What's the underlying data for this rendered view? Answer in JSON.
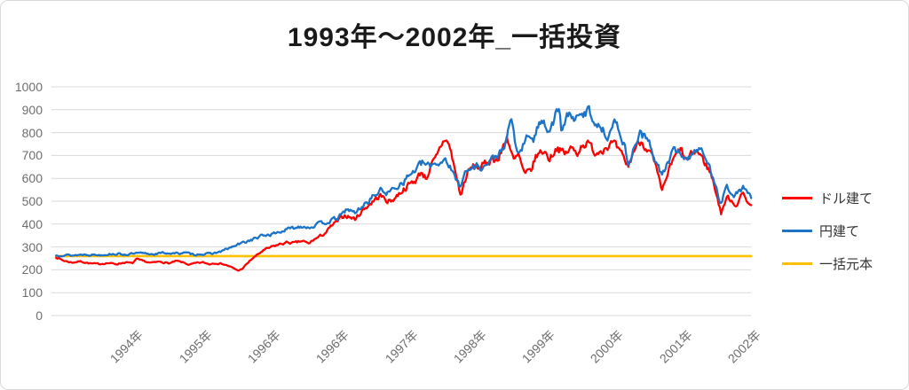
{
  "chart_data": {
    "type": "line",
    "title": "1993年～2002年_一括投資",
    "ylim": [
      0,
      1000
    ],
    "y_ticks": [
      0,
      100,
      200,
      300,
      400,
      500,
      600,
      700,
      800,
      900,
      1000
    ],
    "x_tick_labels": [
      "1994年",
      "1995年",
      "1996年",
      "1996年",
      "1997年",
      "1998年",
      "1999年",
      "2000年",
      "2001年",
      "2002年"
    ],
    "grid": "on",
    "legend_position": "right",
    "principal_value": 260,
    "colors": {
      "dollar_series": "#FF0000",
      "yen_series": "#1C74C8",
      "principal_series": "#FFC000",
      "grid": "#D9D9D9",
      "axis_label": "#6E6E6E",
      "title": "#1A1A1A",
      "legend_text": "#333333",
      "border": "#D9D9D9"
    },
    "series": [
      {
        "name": "ドル建て",
        "color": "#FF0000",
        "seed": 7,
        "anchors": [
          [
            0,
            256
          ],
          [
            0.1,
            241
          ],
          [
            0.23,
            232
          ],
          [
            0.36,
            237
          ],
          [
            0.49,
            228
          ],
          [
            0.62,
            225
          ],
          [
            0.75,
            230
          ],
          [
            0.88,
            225
          ],
          [
            1.01,
            233
          ],
          [
            1.11,
            228
          ],
          [
            1.17,
            246
          ],
          [
            1.26,
            238
          ],
          [
            1.39,
            230
          ],
          [
            1.52,
            236
          ],
          [
            1.65,
            228
          ],
          [
            1.75,
            238
          ],
          [
            1.85,
            232
          ],
          [
            1.94,
            222
          ],
          [
            2.04,
            229
          ],
          [
            2.14,
            232
          ],
          [
            2.23,
            225
          ],
          [
            2.32,
            230
          ],
          [
            2.43,
            226
          ],
          [
            2.53,
            215
          ],
          [
            2.59,
            205
          ],
          [
            2.66,
            196
          ],
          [
            2.72,
            207
          ],
          [
            2.77,
            222
          ],
          [
            2.85,
            247
          ],
          [
            2.92,
            262
          ],
          [
            3.01,
            283
          ],
          [
            3.14,
            299
          ],
          [
            3.2,
            306
          ],
          [
            3.3,
            315
          ],
          [
            3.39,
            320
          ],
          [
            3.48,
            316
          ],
          [
            3.59,
            326
          ],
          [
            3.68,
            313
          ],
          [
            3.75,
            331
          ],
          [
            3.85,
            346
          ],
          [
            3.94,
            366
          ],
          [
            4.03,
            396
          ],
          [
            4.1,
            410
          ],
          [
            4.21,
            440
          ],
          [
            4.3,
            428
          ],
          [
            4.36,
            422
          ],
          [
            4.45,
            455
          ],
          [
            4.53,
            478
          ],
          [
            4.62,
            500
          ],
          [
            4.72,
            525
          ],
          [
            4.81,
            505
          ],
          [
            4.88,
            500
          ],
          [
            4.97,
            525
          ],
          [
            5.07,
            555
          ],
          [
            5.16,
            575
          ],
          [
            5.24,
            592
          ],
          [
            5.33,
            630
          ],
          [
            5.39,
            600
          ],
          [
            5.47,
            655
          ],
          [
            5.55,
            690
          ],
          [
            5.61,
            742
          ],
          [
            5.68,
            779
          ],
          [
            5.75,
            722
          ],
          [
            5.82,
            625
          ],
          [
            5.9,
            520
          ],
          [
            5.95,
            585
          ],
          [
            6.01,
            630
          ],
          [
            6.1,
            655
          ],
          [
            6.19,
            645
          ],
          [
            6.27,
            666
          ],
          [
            6.36,
            692
          ],
          [
            6.45,
            680
          ],
          [
            6.57,
            788
          ],
          [
            6.67,
            672
          ],
          [
            6.74,
            700
          ],
          [
            6.83,
            610
          ],
          [
            6.92,
            635
          ],
          [
            7.0,
            700
          ],
          [
            7.11,
            722
          ],
          [
            7.19,
            686
          ],
          [
            7.3,
            740
          ],
          [
            7.41,
            702
          ],
          [
            7.5,
            731
          ],
          [
            7.59,
            711
          ],
          [
            7.68,
            756
          ],
          [
            7.77,
            746
          ],
          [
            7.86,
            712
          ],
          [
            7.95,
            731
          ],
          [
            8.04,
            745
          ],
          [
            8.12,
            751
          ],
          [
            8.23,
            701
          ],
          [
            8.34,
            651
          ],
          [
            8.43,
            731
          ],
          [
            8.52,
            765
          ],
          [
            8.6,
            741
          ],
          [
            8.69,
            691
          ],
          [
            8.76,
            621
          ],
          [
            8.83,
            537
          ],
          [
            8.89,
            600
          ],
          [
            8.95,
            651
          ],
          [
            9.02,
            691
          ],
          [
            9.1,
            726
          ],
          [
            9.19,
            671
          ],
          [
            9.26,
            701
          ],
          [
            9.33,
            721
          ],
          [
            9.39,
            701
          ],
          [
            9.47,
            661
          ],
          [
            9.54,
            621
          ],
          [
            9.6,
            561
          ],
          [
            9.65,
            501
          ],
          [
            9.69,
            447
          ],
          [
            9.74,
            491
          ],
          [
            9.79,
            516
          ],
          [
            9.86,
            501
          ],
          [
            9.9,
            481
          ],
          [
            9.96,
            511
          ],
          [
            10.01,
            531
          ],
          [
            10.06,
            511
          ],
          [
            10.13,
            475
          ]
        ]
      },
      {
        "name": "円建て",
        "color": "#1C74C8",
        "seed": 13,
        "anchors": [
          [
            0,
            262
          ],
          [
            0.1,
            266
          ],
          [
            0.23,
            263
          ],
          [
            0.43,
            268
          ],
          [
            0.62,
            265
          ],
          [
            0.81,
            270
          ],
          [
            1.01,
            267
          ],
          [
            1.2,
            272
          ],
          [
            1.39,
            269
          ],
          [
            1.59,
            274
          ],
          [
            1.78,
            271
          ],
          [
            1.85,
            276
          ],
          [
            1.94,
            270
          ],
          [
            2.01,
            266
          ],
          [
            2.1,
            270
          ],
          [
            2.19,
            268
          ],
          [
            2.3,
            273
          ],
          [
            2.4,
            279
          ],
          [
            2.49,
            291
          ],
          [
            2.58,
            301
          ],
          [
            2.66,
            311
          ],
          [
            2.75,
            321
          ],
          [
            2.84,
            331
          ],
          [
            2.94,
            341
          ],
          [
            3.01,
            349
          ],
          [
            3.14,
            356
          ],
          [
            3.26,
            366
          ],
          [
            3.37,
            377
          ],
          [
            3.46,
            382
          ],
          [
            3.59,
            393
          ],
          [
            3.69,
            386
          ],
          [
            3.78,
            396
          ],
          [
            3.87,
            402
          ],
          [
            3.97,
            412
          ],
          [
            4.08,
            422
          ],
          [
            4.17,
            441
          ],
          [
            4.23,
            466
          ],
          [
            4.36,
            448
          ],
          [
            4.46,
            478
          ],
          [
            4.55,
            500
          ],
          [
            4.59,
            515
          ],
          [
            4.68,
            535
          ],
          [
            4.75,
            550
          ],
          [
            4.84,
            535
          ],
          [
            4.92,
            555
          ],
          [
            4.98,
            570
          ],
          [
            5.07,
            590
          ],
          [
            5.17,
            620
          ],
          [
            5.26,
            645
          ],
          [
            5.35,
            668
          ],
          [
            5.42,
            651
          ],
          [
            5.52,
            668
          ],
          [
            5.61,
            671
          ],
          [
            5.68,
            692
          ],
          [
            5.72,
            661
          ],
          [
            5.78,
            621
          ],
          [
            5.88,
            570
          ],
          [
            5.95,
            621
          ],
          [
            6.04,
            641
          ],
          [
            6.14,
            656
          ],
          [
            6.23,
            651
          ],
          [
            6.32,
            671
          ],
          [
            6.42,
            701
          ],
          [
            6.53,
            721
          ],
          [
            6.57,
            790
          ],
          [
            6.64,
            845
          ],
          [
            6.7,
            740
          ],
          [
            6.75,
            705
          ],
          [
            6.83,
            758
          ],
          [
            6.9,
            790
          ],
          [
            6.96,
            775
          ],
          [
            7.02,
            820
          ],
          [
            7.11,
            868
          ],
          [
            7.17,
            806
          ],
          [
            7.25,
            851
          ],
          [
            7.33,
            912
          ],
          [
            7.37,
            790
          ],
          [
            7.43,
            861
          ],
          [
            7.52,
            881
          ],
          [
            7.59,
            856
          ],
          [
            7.68,
            871
          ],
          [
            7.75,
            906
          ],
          [
            7.85,
            851
          ],
          [
            7.94,
            821
          ],
          [
            8.03,
            791
          ],
          [
            8.13,
            841
          ],
          [
            8.23,
            801
          ],
          [
            8.35,
            661
          ],
          [
            8.43,
            741
          ],
          [
            8.5,
            801
          ],
          [
            8.6,
            771
          ],
          [
            8.69,
            721
          ],
          [
            8.76,
            661
          ],
          [
            8.83,
            611
          ],
          [
            8.89,
            651
          ],
          [
            8.95,
            691
          ],
          [
            9.0,
            716
          ],
          [
            9.1,
            721
          ],
          [
            9.17,
            681
          ],
          [
            9.24,
            701
          ],
          [
            9.3,
            726
          ],
          [
            9.37,
            731
          ],
          [
            9.43,
            701
          ],
          [
            9.5,
            661
          ],
          [
            9.56,
            621
          ],
          [
            9.63,
            561
          ],
          [
            9.68,
            491
          ],
          [
            9.73,
            531
          ],
          [
            9.78,
            561
          ],
          [
            9.84,
            541
          ],
          [
            9.9,
            526
          ],
          [
            9.96,
            546
          ],
          [
            10.01,
            561
          ],
          [
            10.06,
            546
          ],
          [
            10.13,
            515
          ]
        ]
      },
      {
        "name": "一括元本",
        "color": "#FFC000",
        "flat": true,
        "value": 260,
        "t_range": [
          0,
          10.13
        ]
      }
    ]
  }
}
